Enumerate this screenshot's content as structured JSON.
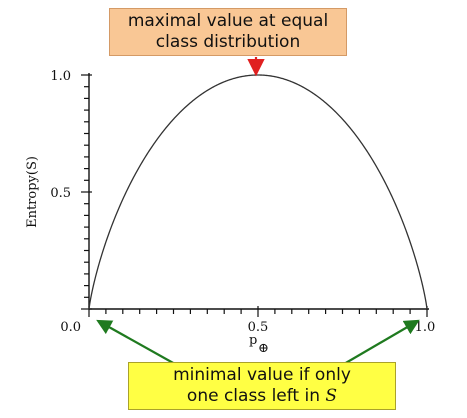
{
  "chart_data": {
    "type": "line",
    "ylabel": "Entropy(S)",
    "xlabel": "p",
    "xlabel_subscript": "⊕",
    "xlim": [
      0.0,
      1.0
    ],
    "ylim": [
      0.0,
      1.0
    ],
    "x_tick_labels": [
      "0.0",
      "0.5",
      "1.0"
    ],
    "y_tick_labels": [
      "0.5",
      "1.0"
    ],
    "series": [
      {
        "function": "binary_entropy",
        "x_range": [
          0.0,
          1.0
        ]
      }
    ],
    "annotations": {
      "top": {
        "line1": "maximal value at equal",
        "line2": "class distribution",
        "points_to": {
          "x": 0.5,
          "y": 1.0
        },
        "arrow_color": "#e02020"
      },
      "bottom": {
        "line1": "minimal value if only",
        "line2_prefix": "one class left in ",
        "line2_var": "S",
        "points_to": [
          {
            "x": 0.0,
            "y": 0.0
          },
          {
            "x": 1.0,
            "y": 0.0
          }
        ],
        "arrow_color": "#1f7a1f"
      }
    },
    "colors": {
      "curve": "#333333",
      "axes": "#111111"
    }
  }
}
